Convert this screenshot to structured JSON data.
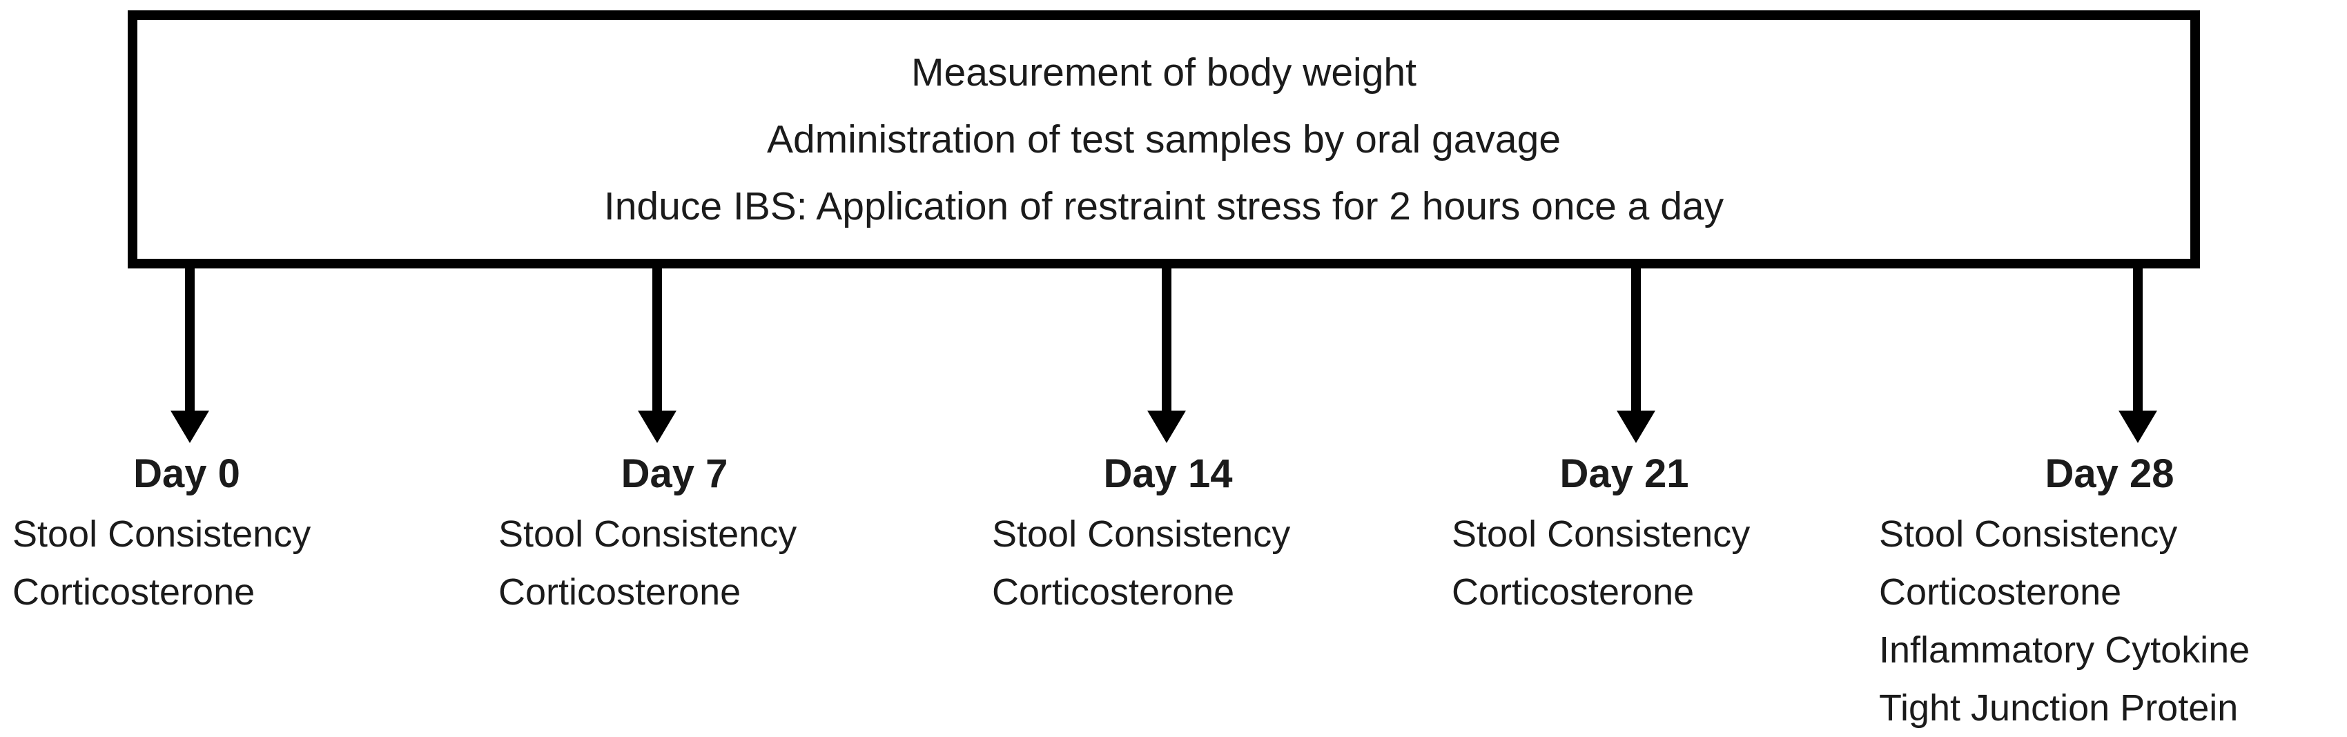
{
  "figure": {
    "protocol_box": {
      "lines": [
        "Measurement of body weight",
        "Administration of test samples by oral gavage",
        "Induce IBS: Application of restraint stress for 2 hours once a day"
      ]
    },
    "timepoints": [
      {
        "day": "Day 0",
        "measurements": [
          "Stool Consistency",
          "Corticosterone"
        ]
      },
      {
        "day": "Day 7",
        "measurements": [
          "Stool Consistency",
          "Corticosterone"
        ]
      },
      {
        "day": "Day 14",
        "measurements": [
          "Stool Consistency",
          "Corticosterone"
        ]
      },
      {
        "day": "Day 21",
        "measurements": [
          "Stool Consistency",
          "Corticosterone"
        ]
      },
      {
        "day": "Day 28",
        "measurements": [
          "Stool Consistency",
          "Corticosterone",
          "Inflammatory Cytokine",
          "Tight Junction Protein"
        ]
      }
    ],
    "colors": {
      "ink": "#1b1b1b",
      "line": "#000000",
      "background": "#ffffff"
    }
  }
}
